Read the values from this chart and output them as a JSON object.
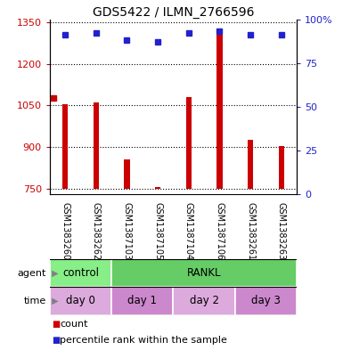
{
  "title": "GDS5422 / ILMN_2766596",
  "samples": [
    "GSM1383260",
    "GSM1383262",
    "GSM1387103",
    "GSM1387105",
    "GSM1387104",
    "GSM1387106",
    "GSM1383261",
    "GSM1383263"
  ],
  "counts": [
    1055,
    1060,
    855,
    757,
    1080,
    1310,
    925,
    905
  ],
  "percentile_ranks": [
    91,
    92,
    88,
    87,
    92,
    93,
    91,
    91
  ],
  "ylim_left": [
    730,
    1360
  ],
  "ylim_right": [
    0,
    100
  ],
  "yticks_left": [
    750,
    900,
    1050,
    1200,
    1350
  ],
  "yticks_right": [
    0,
    25,
    50,
    75,
    100
  ],
  "bar_color": "#cc0000",
  "dot_color": "#2222cc",
  "bar_bottom": 750,
  "bar_width": 0.18,
  "agent_groups": [
    {
      "label": "control",
      "start": 0,
      "end": 2,
      "color": "#88ee88"
    },
    {
      "label": "RANKL",
      "start": 2,
      "end": 8,
      "color": "#66cc66"
    }
  ],
  "time_groups": [
    {
      "label": "day 0",
      "start": 0,
      "end": 2,
      "color": "#ddaadd"
    },
    {
      "label": "day 1",
      "start": 2,
      "end": 4,
      "color": "#cc88cc"
    },
    {
      "label": "day 2",
      "start": 4,
      "end": 6,
      "color": "#ddaadd"
    },
    {
      "label": "day 3",
      "start": 6,
      "end": 8,
      "color": "#cc88cc"
    }
  ],
  "sample_bg_color": "#cccccc",
  "legend_count_color": "#cc0000",
  "legend_dot_color": "#2222cc",
  "fig_bg_color": "#ffffff",
  "left_label_color": "#cc0000",
  "right_label_color": "#2222cc"
}
